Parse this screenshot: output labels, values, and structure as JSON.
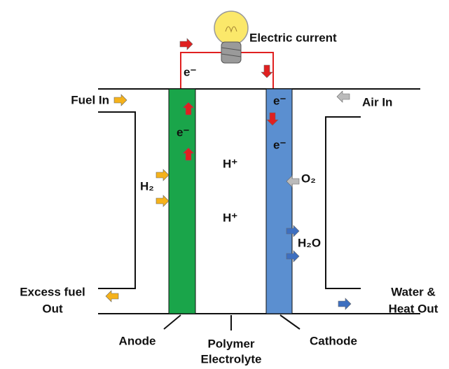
{
  "title": "Electric current",
  "electrons": [
    "e⁻",
    "e⁻",
    "e⁻",
    "e⁻"
  ],
  "protons": [
    "H⁺",
    "H⁺"
  ],
  "inputs": {
    "fuel": "Fuel In",
    "air": "Air In",
    "hydrogen": "H₂",
    "oxygen": "O₂"
  },
  "outputs": {
    "excess_fuel": [
      "Excess fuel",
      "Out"
    ],
    "water": [
      "Water &",
      "Heat Out"
    ],
    "water_product": "H₂O"
  },
  "parts": {
    "anode": "Anode",
    "electrolyte": [
      "Polymer",
      "Electrolyte"
    ],
    "cathode": "Cathode"
  }
}
